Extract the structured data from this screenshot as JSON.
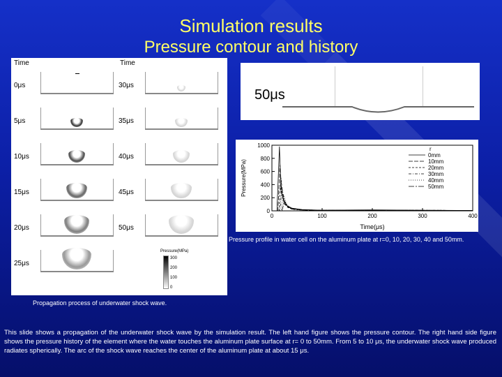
{
  "slide": {
    "title": "Simulation results",
    "subtitle": "Pressure contour and history"
  },
  "left_figure": {
    "time_header_left": "Time",
    "time_header_right": "Time",
    "times_left": [
      "0μs",
      "5μs",
      "10μs",
      "15μs",
      "20μs",
      "25μs"
    ],
    "times_right": [
      "30μs",
      "35μs",
      "40μs",
      "45μs",
      "50μs"
    ],
    "legend_title": "Pressure(MPa)",
    "legend_ticks": [
      "300",
      "200",
      "100",
      "0"
    ],
    "caption": "Propagation process of underwater shock wave."
  },
  "right_top": {
    "time_label": "50μs"
  },
  "chart_data": {
    "type": "line",
    "xlabel": "Time(μs)",
    "ylabel": "Pressure(MPa)",
    "xlim": [
      0,
      400
    ],
    "ylim": [
      0,
      1000
    ],
    "x_ticks": [
      "0",
      "100",
      "200",
      "300",
      "400"
    ],
    "y_ticks": [
      "0",
      "200",
      "400",
      "600",
      "800",
      "1000"
    ],
    "legend_title": "r",
    "series": [
      {
        "name": "0mm",
        "x": [
          0,
          10,
          15,
          18,
          25,
          40,
          60,
          100,
          200,
          300,
          400
        ],
        "y": [
          0,
          0,
          980,
          300,
          100,
          40,
          20,
          10,
          15,
          10,
          5
        ]
      },
      {
        "name": "10mm",
        "x": [
          0,
          12,
          16,
          20,
          28,
          40,
          60,
          100,
          200,
          300,
          400
        ],
        "y": [
          0,
          0,
          700,
          250,
          80,
          30,
          15,
          10,
          10,
          8,
          5
        ]
      },
      {
        "name": "20mm",
        "x": [
          0,
          14,
          18,
          22,
          30,
          45,
          60,
          100,
          200,
          300,
          400
        ],
        "y": [
          0,
          0,
          500,
          200,
          60,
          25,
          15,
          10,
          12,
          8,
          5
        ]
      },
      {
        "name": "30mm",
        "x": [
          0,
          16,
          20,
          25,
          32,
          45,
          70,
          100,
          200,
          300,
          400
        ],
        "y": [
          0,
          0,
          350,
          150,
          50,
          20,
          10,
          8,
          10,
          6,
          5
        ]
      },
      {
        "name": "40mm",
        "x": [
          0,
          18,
          23,
          28,
          35,
          50,
          70,
          100,
          200,
          300,
          400
        ],
        "y": [
          0,
          0,
          250,
          120,
          40,
          20,
          10,
          8,
          8,
          6,
          5
        ]
      },
      {
        "name": "50mm",
        "x": [
          0,
          20,
          25,
          30,
          38,
          50,
          70,
          100,
          200,
          300,
          400
        ],
        "y": [
          0,
          0,
          150,
          80,
          30,
          15,
          10,
          8,
          8,
          6,
          5
        ]
      }
    ],
    "caption": "Pressure profile in water cell on the aluminum plate at r=0, 10, 20, 30, 40 and 50mm."
  },
  "body_text": "This slide shows a propagation of the underwater shock wave by the simulation result. The left hand figure shows the pressure contour. The right hand side figure shows the pressure history of the element where the water touches the aluminum plate surface at r= 0 to 50mm. From 5 to 10 μs, the underwater shock wave produced radiates spherically. The arc of the shock wave reaches the center of the aluminum plate at about 15 μs."
}
